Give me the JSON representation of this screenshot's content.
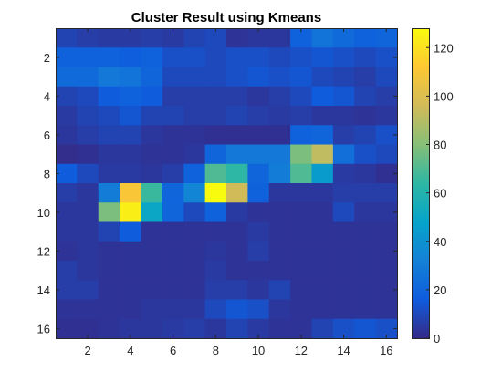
{
  "chart_data": {
    "type": "heatmap",
    "title": "Cluster Result using Kmeans",
    "xlabel": "",
    "ylabel": "",
    "x": [
      1,
      2,
      3,
      4,
      5,
      6,
      7,
      8,
      9,
      10,
      11,
      12,
      13,
      14,
      15,
      16
    ],
    "y": [
      1,
      2,
      3,
      4,
      5,
      6,
      7,
      8,
      9,
      10,
      11,
      12,
      13,
      14,
      15,
      16
    ],
    "x_ticks": [
      2,
      4,
      6,
      8,
      10,
      12,
      14,
      16
    ],
    "y_ticks": [
      2,
      4,
      6,
      8,
      10,
      12,
      14,
      16
    ],
    "y_direction": "reverse",
    "grid": false,
    "colormap": "parula",
    "colorbar": {
      "location": "right",
      "limits": [
        0,
        128
      ],
      "ticks": [
        0,
        20,
        40,
        60,
        80,
        100,
        120
      ]
    },
    "values": [
      [
        8,
        6,
        5,
        5,
        6,
        5,
        8,
        10,
        3,
        4,
        4,
        18,
        26,
        22,
        18,
        20
      ],
      [
        18,
        18,
        18,
        17,
        18,
        12,
        12,
        10,
        12,
        12,
        10,
        12,
        14,
        12,
        10,
        12
      ],
      [
        22,
        22,
        28,
        26,
        20,
        10,
        10,
        10,
        12,
        14,
        12,
        14,
        10,
        8,
        6,
        10
      ],
      [
        8,
        10,
        16,
        18,
        16,
        6,
        6,
        6,
        6,
        4,
        6,
        10,
        16,
        14,
        8,
        6
      ],
      [
        5,
        8,
        10,
        14,
        8,
        8,
        6,
        6,
        8,
        6,
        5,
        6,
        4,
        4,
        3,
        4
      ],
      [
        4,
        6,
        8,
        8,
        4,
        3,
        3,
        2,
        2,
        2,
        2,
        18,
        20,
        6,
        8,
        12
      ],
      [
        1,
        2,
        4,
        4,
        3,
        3,
        4,
        20,
        28,
        28,
        28,
        78,
        92,
        24,
        12,
        10
      ],
      [
        16,
        10,
        5,
        5,
        4,
        6,
        18,
        70,
        64,
        20,
        30,
        70,
        44,
        5,
        4,
        2
      ],
      [
        6,
        4,
        30,
        110,
        66,
        20,
        34,
        128,
        96,
        18,
        4,
        4,
        4,
        6,
        6,
        6
      ],
      [
        4,
        4,
        78,
        124,
        50,
        20,
        10,
        18,
        5,
        3,
        3,
        3,
        3,
        10,
        4,
        4
      ],
      [
        4,
        4,
        8,
        16,
        3,
        3,
        3,
        3,
        3,
        5,
        3,
        3,
        3,
        3,
        3,
        3
      ],
      [
        3,
        4,
        3,
        3,
        3,
        3,
        3,
        4,
        3,
        6,
        3,
        3,
        3,
        3,
        3,
        3
      ],
      [
        6,
        4,
        3,
        3,
        3,
        3,
        3,
        5,
        3,
        3,
        3,
        3,
        3,
        3,
        3,
        3
      ],
      [
        6,
        6,
        3,
        3,
        3,
        3,
        3,
        6,
        6,
        4,
        8,
        3,
        3,
        3,
        3,
        3
      ],
      [
        3,
        3,
        3,
        3,
        4,
        4,
        4,
        10,
        14,
        12,
        4,
        3,
        3,
        3,
        3,
        3
      ],
      [
        2,
        2,
        3,
        4,
        4,
        5,
        6,
        4,
        8,
        5,
        3,
        3,
        8,
        12,
        14,
        12
      ]
    ]
  }
}
